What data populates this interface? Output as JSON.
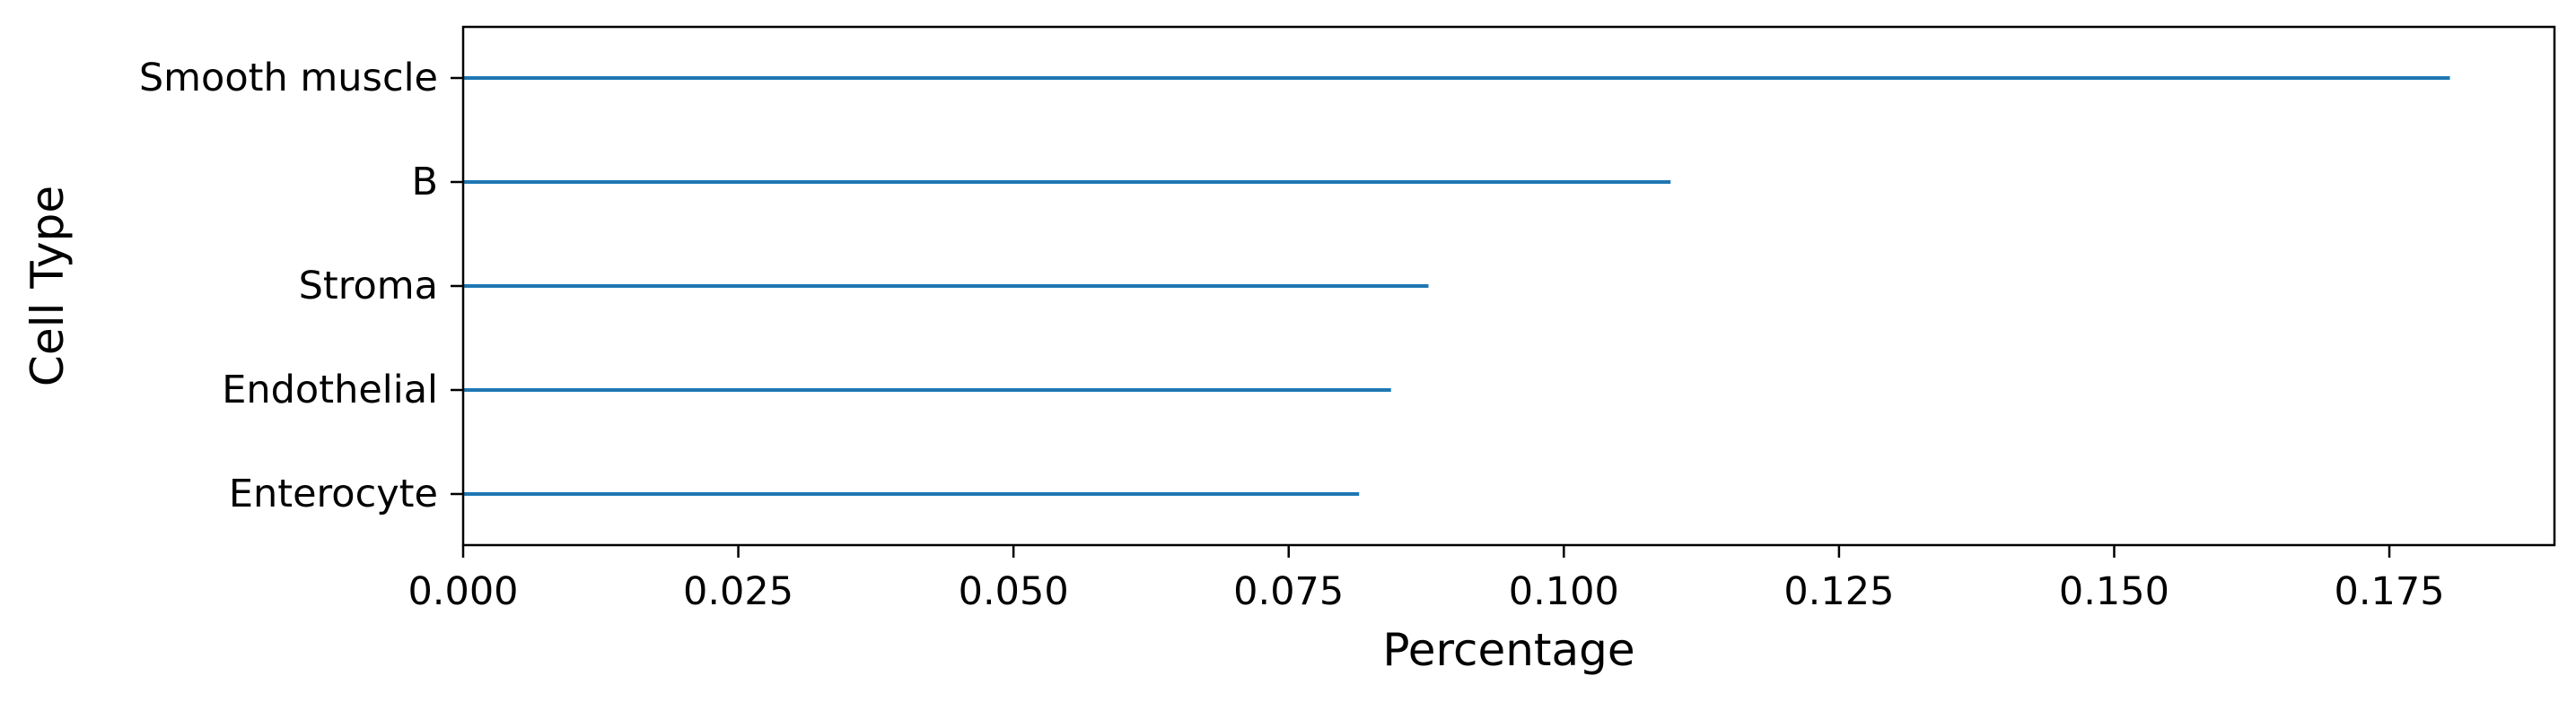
{
  "chart_data": {
    "type": "bar",
    "orientation": "horizontal",
    "title": "",
    "xlabel": "Percentage",
    "ylabel": "Cell Type",
    "categories": [
      "Smooth muscle",
      "B",
      "Stroma",
      "Endothelial",
      "Enterocyte"
    ],
    "values": [
      0.1805,
      0.1097,
      0.0877,
      0.0843,
      0.0814
    ],
    "xlim": [
      0,
      0.19
    ],
    "x_ticks": [
      "0.000",
      "0.025",
      "0.050",
      "0.075",
      "0.100",
      "0.125",
      "0.150",
      "0.175"
    ],
    "x_tick_values": [
      0,
      0.025,
      0.05,
      0.075,
      0.1,
      0.125,
      0.15,
      0.175
    ],
    "grid": false,
    "bar_color": "#1f77b4"
  }
}
